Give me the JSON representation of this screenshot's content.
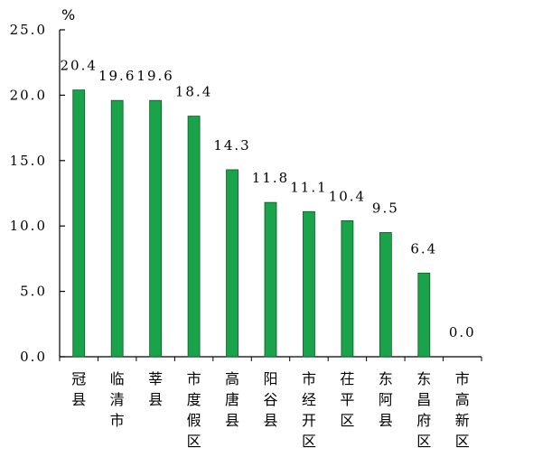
{
  "chart_data": {
    "type": "bar",
    "title": "",
    "xlabel": "",
    "ylabel": "%",
    "ylim": [
      0,
      25
    ],
    "yticks": [
      "0.0",
      "5.0",
      "10.0",
      "15.0",
      "20.0",
      "25.0"
    ],
    "grid": false,
    "bar_color": "#1aa34a",
    "categories": [
      "冠县",
      "临清市",
      "莘县",
      "市度假区",
      "高唐县",
      "阳谷县",
      "市经开区",
      "茌平区",
      "东阿县",
      "东昌府区",
      "市高新区"
    ],
    "values": [
      20.4,
      19.6,
      19.6,
      18.4,
      14.3,
      11.8,
      11.1,
      10.4,
      9.5,
      6.4,
      0.0
    ],
    "value_labels": [
      "20.4",
      "19.6",
      "19.6",
      "18.4",
      "14.3",
      "11.8",
      "11.1",
      "10.4",
      "9.5",
      "6.4",
      "0.0"
    ]
  }
}
